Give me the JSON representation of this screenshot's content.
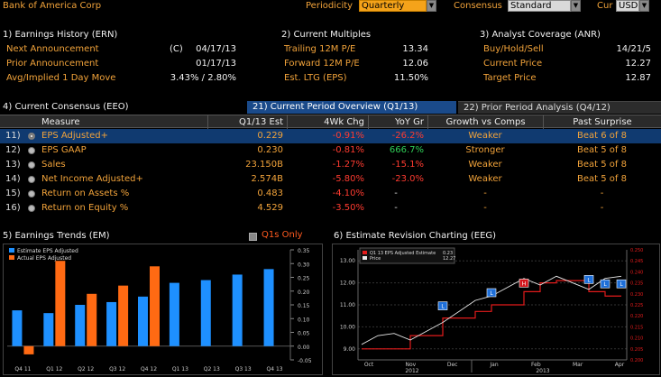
{
  "header": {
    "security": "Bank of America Corp",
    "periodicity_label": "Periodicity",
    "periodicity_value": "Quarterly",
    "consensus_label": "Consensus",
    "consensus_value": "Standard",
    "cur_label": "Cur",
    "cur_value": "USD"
  },
  "ern": {
    "title": "1) Earnings History (ERN)",
    "rows": [
      {
        "label": "Next Announcement",
        "flag": "(C)",
        "value": "04/17/13"
      },
      {
        "label": "Prior Announcement",
        "flag": "",
        "value": "01/17/13"
      },
      {
        "label": "Avg/Implied 1 Day Move",
        "flag": "",
        "value": "3.43% / 2.80%"
      }
    ]
  },
  "multiples": {
    "title": "2) Current Multiples",
    "rows": [
      {
        "label": "Trailing 12M P/E",
        "value": "13.34"
      },
      {
        "label": "Forward 12M P/E",
        "value": "12.06"
      },
      {
        "label": "Est. LTG (EPS)",
        "value": "11.50%"
      }
    ]
  },
  "anr": {
    "title": "3) Analyst Coverage (ANR)",
    "rows": [
      {
        "label": "Buy/Hold/Sell",
        "value": "14/21/5"
      },
      {
        "label": "Current Price",
        "value": "12.27"
      },
      {
        "label": "Target Price",
        "value": "12.87"
      }
    ]
  },
  "consensus": {
    "title": "4) Current Consensus (EEO)",
    "tab_active": "21) Current Period Overview (Q1/13)",
    "tab_inactive": "22) Prior Period Analysis (Q4/12)",
    "headers": [
      "Measure",
      "Q1/13 Est",
      "4Wk Chg",
      "YoY Gr",
      "Growth vs Comps",
      "Past Surprise"
    ],
    "rows": [
      {
        "num": "11)",
        "measure": "EPS Adjusted+",
        "est": "0.229",
        "chg": "-0.91%",
        "yoy": "-26.2%",
        "comps": "Weaker",
        "surprise": "Beat 6 of 8"
      },
      {
        "num": "12)",
        "measure": "EPS GAAP",
        "est": "0.230",
        "chg": "-0.81%",
        "yoy": "666.7%",
        "comps": "Stronger",
        "surprise": "Beat 5 of 8"
      },
      {
        "num": "13)",
        "measure": "Sales",
        "est": "23.150B",
        "chg": "-1.27%",
        "yoy": "-15.1%",
        "comps": "Weaker",
        "surprise": "Beat 5 of 8"
      },
      {
        "num": "14)",
        "measure": "Net Income Adjusted+",
        "est": "2.574B",
        "chg": "-5.80%",
        "yoy": "-23.0%",
        "comps": "Weaker",
        "surprise": "Beat 5 of 8"
      },
      {
        "num": "15)",
        "measure": "Return on Assets %",
        "est": "0.483",
        "chg": "-4.10%",
        "yoy": "-",
        "comps": "-",
        "surprise": "-"
      },
      {
        "num": "16)",
        "measure": "Return on Equity %",
        "est": "4.529",
        "chg": "-3.50%",
        "yoy": "-",
        "comps": "-",
        "surprise": "-"
      }
    ]
  },
  "trends": {
    "title": "5) Earnings Trends (EM)",
    "q1s_label": "Q1s Only"
  },
  "revision": {
    "title": "6) Estimate Revision Charting (EEG)"
  },
  "colors": {
    "estimate": "#1e90ff",
    "actual": "#ff6a13",
    "estimate_line": "#e31b1b",
    "price_line": "#e8e8e8",
    "accent": "#f2a33a"
  },
  "chart_data": [
    {
      "type": "bar",
      "categories": [
        "Q4 11",
        "Q1 12",
        "Q2 12",
        "Q3 12",
        "Q4 12",
        "Q1 13",
        "Q2 13",
        "Q3 13",
        "Q4 13"
      ],
      "series": [
        {
          "name": "Estimate EPS Adjusted",
          "values": [
            0.13,
            0.12,
            0.15,
            0.16,
            0.18,
            0.23,
            0.24,
            0.26,
            0.28
          ]
        },
        {
          "name": "Actual EPS Adjusted",
          "values": [
            -0.03,
            0.31,
            0.19,
            0.22,
            0.29,
            null,
            null,
            null,
            null
          ]
        }
      ],
      "ylim": [
        -0.05,
        0.35
      ],
      "yticks": [
        "0.35",
        "0.30",
        "0.25",
        "0.20",
        "0.15",
        "0.10",
        "0.05",
        "0.00",
        "-0.05"
      ],
      "legend": "top-left"
    },
    {
      "type": "line",
      "legend_entries": [
        {
          "label": "Q1 13 EPS Adjusted Estimate",
          "value": "0.23"
        },
        {
          "label": "Price",
          "value": "12.27"
        }
      ],
      "x_labels": [
        "Oct",
        "Nov",
        "Dec",
        "Jan",
        "Feb",
        "Mar",
        "Apr"
      ],
      "year_labels": [
        "2012",
        "2013"
      ],
      "left_ticks": [
        "13.00",
        "12.00",
        "11.00",
        "10.00",
        "9.00"
      ],
      "right_ticks": [
        "0.250",
        "0.245",
        "0.240",
        "0.235",
        "0.230",
        "0.225",
        "0.220",
        "0.215",
        "0.210",
        "0.205",
        "0.200"
      ],
      "series": [
        {
          "name": "Q1 13 EPS Adjusted Estimate",
          "values": [
            0.205,
            0.205,
            0.205,
            0.211,
            0.211,
            0.219,
            0.219,
            0.222,
            0.225,
            0.225,
            0.231,
            0.235,
            0.236,
            0.236,
            0.231,
            0.229,
            0.229
          ]
        },
        {
          "name": "Price",
          "values": [
            9.2,
            9.6,
            9.7,
            9.4,
            9.8,
            10.2,
            10.7,
            11.2,
            11.4,
            11.8,
            12.2,
            11.9,
            12.3,
            12.0,
            11.7,
            12.2,
            12.3
          ]
        }
      ],
      "markers": [
        "L",
        "L",
        "H",
        "L",
        "L",
        "L"
      ]
    }
  ]
}
